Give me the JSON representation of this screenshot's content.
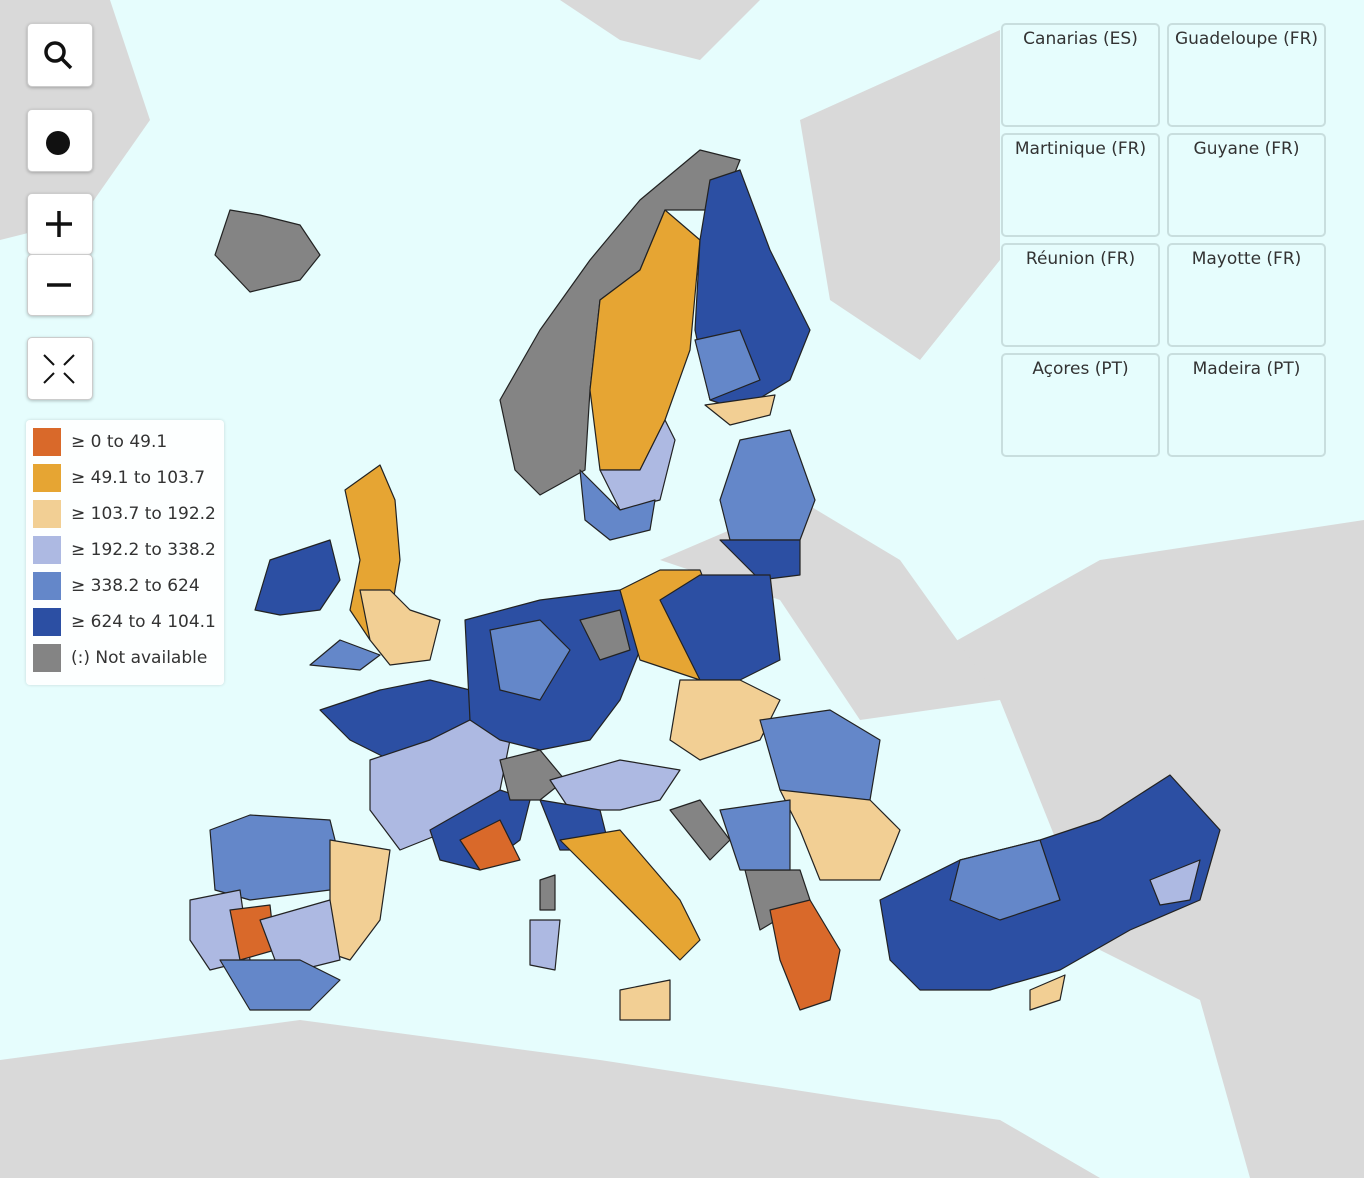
{
  "legend": {
    "items": [
      {
        "label": "≥ 0 to 49.1",
        "color": "#d9692a"
      },
      {
        "label": "≥ 49.1 to 103.7",
        "color": "#e6a533"
      },
      {
        "label": "≥ 103.7 to 192.2",
        "color": "#f2cf94"
      },
      {
        "label": "≥ 192.2 to 338.2",
        "color": "#adb9e2"
      },
      {
        "label": "≥ 338.2 to 624",
        "color": "#6487c9"
      },
      {
        "label": "≥ 624 to 4 104.1",
        "color": "#2c4fa3"
      },
      {
        "label": "(:) Not available",
        "color": "#848484"
      }
    ]
  },
  "insets": [
    {
      "label": "Canarias (ES)"
    },
    {
      "label": "Guadeloupe (FR)"
    },
    {
      "label": "Martinique (FR)"
    },
    {
      "label": "Guyane (FR)"
    },
    {
      "label": "Réunion (FR)"
    },
    {
      "label": "Mayotte (FR)"
    },
    {
      "label": "Açores (PT)"
    },
    {
      "label": "Madeira (PT)"
    }
  ]
}
